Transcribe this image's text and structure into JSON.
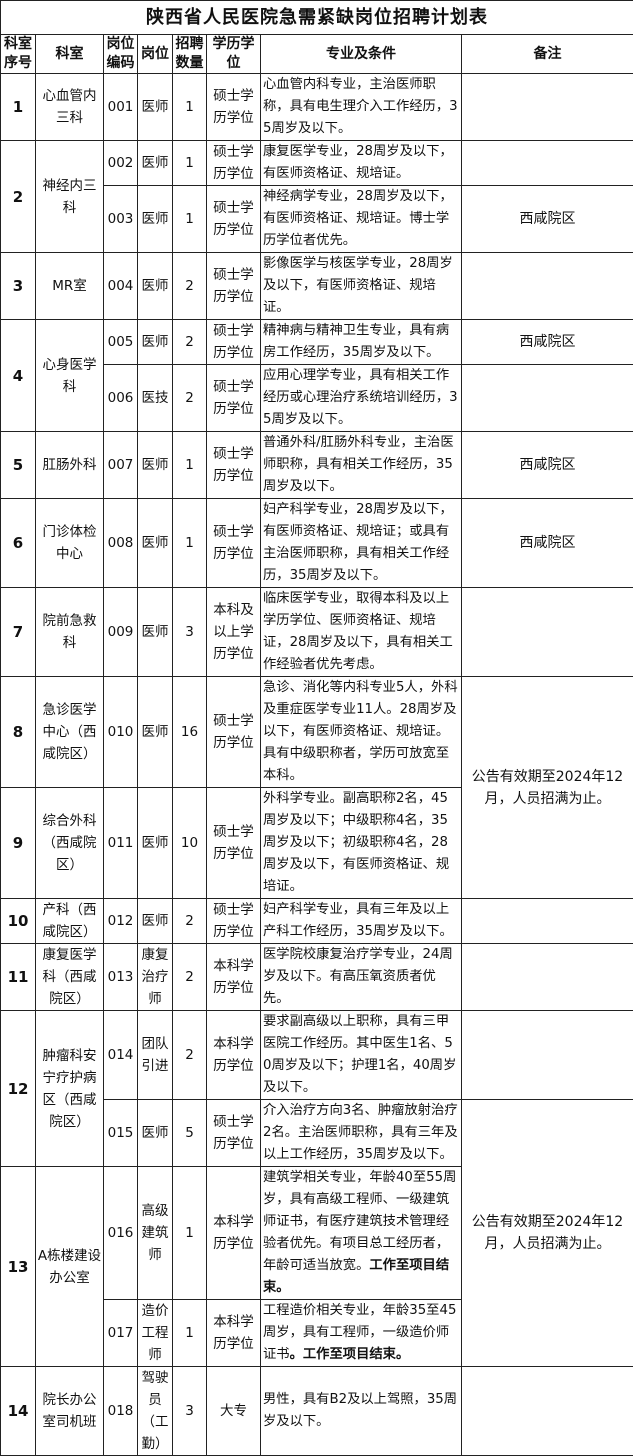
{
  "title": "陕西省人民医院急需紧缺岗位招聘计划表",
  "headers": [
    "科室序号",
    "科室",
    "岗位编码",
    "岗位",
    "招聘数量",
    "学历学位",
    "专业及条件",
    "备注"
  ],
  "departments": [
    {
      "seq": "1",
      "dept": "心血管内三科",
      "positions": [
        {
          "code": "001",
          "title": "医师",
          "count": "1",
          "education": "硕士学历学位",
          "conditions": "心血管内科专业，主治医师职称，具有电生理介入工作经历，35周岁及以下。",
          "note": ""
        }
      ]
    },
    {
      "seq": "2",
      "dept": "神经内三科",
      "positions": [
        {
          "code": "002",
          "title": "医师",
          "count": "1",
          "education": "硕士学历学位",
          "conditions": "康复医学专业，28周岁及以下，有医师资格证、规培证。",
          "note": ""
        },
        {
          "code": "003",
          "title": "医师",
          "count": "1",
          "education": "硕士学历学位",
          "conditions": "神经病学专业，28周岁及以下，有医师资格证、规培证。博士学历学位者优先。",
          "note": "西咸院区"
        }
      ]
    },
    {
      "seq": "3",
      "dept": "MR室",
      "positions": [
        {
          "code": "004",
          "title": "医师",
          "count": "2",
          "education": "硕士学历学位",
          "conditions": "影像医学与核医学专业，28周岁及以下，有医师资格证、规培证。",
          "note": ""
        }
      ]
    },
    {
      "seq": "4",
      "dept": "心身医学科",
      "positions": [
        {
          "code": "005",
          "title": "医师",
          "count": "2",
          "education": "硕士学历学位",
          "conditions": "精神病与精神卫生专业，具有病房工作经历，35周岁及以下。",
          "note": "西咸院区"
        },
        {
          "code": "006",
          "title": "医技",
          "count": "2",
          "education": "硕士学历学位",
          "conditions": "应用心理学专业，具有相关工作经历或心理治疗系统培训经历，35周岁及以下。",
          "note": ""
        }
      ]
    },
    {
      "seq": "5",
      "dept": "肛肠外科",
      "positions": [
        {
          "code": "007",
          "title": "医师",
          "count": "1",
          "education": "硕士学历学位",
          "conditions": "普通外科/肛肠外科专业，主治医师职称，具有相关工作经历，35周岁及以下。",
          "note": "西咸院区"
        }
      ]
    },
    {
      "seq": "6",
      "dept": "门诊体检中心",
      "positions": [
        {
          "code": "008",
          "title": "医师",
          "count": "1",
          "education": "硕士学历学位",
          "conditions": "妇产科学专业，28周岁及以下，有医师资格证、规培证；或具有主治医师职称，具有相关工作经历，35周岁及以下。",
          "note": "西咸院区"
        }
      ]
    },
    {
      "seq": "7",
      "dept": "院前急救科",
      "positions": [
        {
          "code": "009",
          "title": "医师",
          "count": "3",
          "education": "本科及以上学历学位",
          "conditions": "临床医学专业，取得本科及以上学历学位、医师资格证、规培证，28周岁及以下，具有相关工作经验者优先考虑。",
          "note": ""
        }
      ]
    },
    {
      "seq": "8",
      "dept": "急诊医学中心（西咸院区）",
      "positions": [
        {
          "code": "010",
          "title": "医师",
          "count": "16",
          "education": "硕士学历学位",
          "conditions": "急诊、消化等内科专业5人，外科及重症医学专业11人。28周岁及以下，有医师资格证、规培证。具有中级职称者，学历可放宽至本科。"
        }
      ]
    },
    {
      "seq": "9",
      "dept": "综合外科（西咸院区）",
      "positions": [
        {
          "code": "011",
          "title": "医师",
          "count": "10",
          "education": "硕士学历学位",
          "conditions": "外科学专业。副高职称2名，45周岁及以下；中级职称4名，35周岁及以下；初级职称4名，28周岁及以下，有医师资格证、规培证。"
        }
      ]
    },
    {
      "seq": "10",
      "dept": "产科（西咸院区）",
      "positions": [
        {
          "code": "012",
          "title": "医师",
          "count": "2",
          "education": "硕士学历学位",
          "conditions": "妇产科学专业，具有三年及以上产科工作经历，35周岁及以下。",
          "note": ""
        }
      ]
    },
    {
      "seq": "11",
      "dept": "康复医学科（西咸院区）",
      "positions": [
        {
          "code": "013",
          "title": "康复治疗师",
          "count": "2",
          "education": "本科学历学位",
          "conditions": "医学院校康复治疗学专业，24周岁及以下。有高压氧资质者优先。",
          "note": ""
        }
      ]
    },
    {
      "seq": "12",
      "dept": "肿瘤科安宁疗护病区（西咸院区）",
      "positions": [
        {
          "code": "014",
          "title": "团队引进",
          "count": "2",
          "education": "本科学历学位",
          "conditions": "要求副高级以上职称，具有三甲医院工作经历。其中医生1名、50周岁及以下；护理1名，40周岁及以下。",
          "note": ""
        },
        {
          "code": "015",
          "title": "医师",
          "count": "5",
          "education": "硕士学历学位",
          "conditions": "介入治疗方向3名、肿瘤放射治疗2名。主治医师职称，具有三年及以上工作经历，35周岁及以下。"
        }
      ]
    },
    {
      "seq": "13",
      "dept": "A栋楼建设办公室",
      "positions": [
        {
          "code": "016",
          "title": "高级建筑师",
          "count": "1",
          "education": "本科学历学位",
          "conditions": "建筑学相关专业，年龄40至55周岁，具有高级工程师、一级建筑师证书，有医疗建筑技术管理经验者优先。有项目总工经历者，年龄可适当放宽。",
          "conditions_bold": "工作至项目结束。"
        },
        {
          "code": "017",
          "title": "造价工程师",
          "count": "1",
          "education": "本科学历学位",
          "conditions": "工程造价相关专业，年龄35至45周岁，具有工程师，一级造价师证书",
          "conditions_bold": "。工作至项目结束。"
        }
      ]
    },
    {
      "seq": "14",
      "dept": "院长办公室司机班",
      "positions": [
        {
          "code": "018",
          "title": "驾驶员（工勤）",
          "count": "3",
          "education": "大专",
          "conditions": "男性，具有B2及以上驾照，35周岁及以下。",
          "note": ""
        }
      ]
    }
  ],
  "shared_notes": [
    {
      "text": "公告有效期至2024年12月，人员招满为止。",
      "codes": [
        "010",
        "011"
      ]
    },
    {
      "text": "公告有效期至2024年12月，人员招满为止。",
      "codes": [
        "015",
        "016",
        "017"
      ]
    }
  ]
}
